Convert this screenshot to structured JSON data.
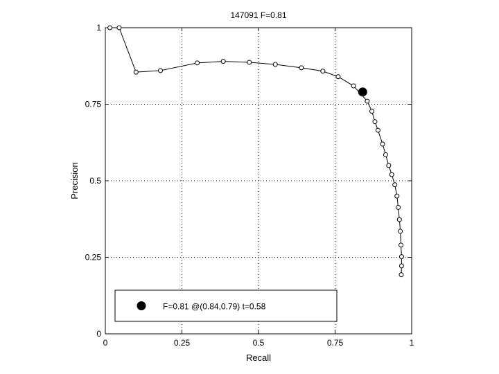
{
  "chart_data": {
    "type": "line",
    "title": "147091 F=0.81",
    "xlabel": "Recall",
    "ylabel": "Precision",
    "xlim": [
      0,
      1
    ],
    "ylim": [
      0,
      1
    ],
    "x_ticks": [
      0,
      0.25,
      0.5,
      0.75,
      1
    ],
    "y_ticks": [
      0,
      0.25,
      0.5,
      0.75,
      1
    ],
    "x_tick_labels": [
      "0",
      "0.25",
      "0.5",
      "0.75",
      "1"
    ],
    "y_tick_labels": [
      "0",
      "0.25",
      "0.5",
      "0.75",
      "1"
    ],
    "grid": true,
    "grid_style": "dotted",
    "legend_position": "bottom-left",
    "series": [
      {
        "color": "#000000",
        "marker": "open-circle",
        "points": [
          [
            0.015,
            1.0
          ],
          [
            0.045,
            1.0
          ],
          [
            0.1,
            0.855
          ],
          [
            0.18,
            0.86
          ],
          [
            0.3,
            0.885
          ],
          [
            0.385,
            0.89
          ],
          [
            0.47,
            0.887
          ],
          [
            0.555,
            0.88
          ],
          [
            0.64,
            0.869
          ],
          [
            0.71,
            0.858
          ],
          [
            0.76,
            0.84
          ],
          [
            0.81,
            0.81
          ],
          [
            0.855,
            0.76
          ],
          [
            0.87,
            0.727
          ],
          [
            0.88,
            0.693
          ],
          [
            0.89,
            0.665
          ],
          [
            0.905,
            0.62
          ],
          [
            0.915,
            0.585
          ],
          [
            0.925,
            0.55
          ],
          [
            0.935,
            0.52
          ],
          [
            0.945,
            0.487
          ],
          [
            0.952,
            0.45
          ],
          [
            0.956,
            0.413
          ],
          [
            0.96,
            0.373
          ],
          [
            0.963,
            0.335
          ],
          [
            0.965,
            0.29
          ],
          [
            0.967,
            0.252
          ],
          [
            0.967,
            0.222
          ],
          [
            0.966,
            0.193
          ]
        ]
      }
    ],
    "highlight_point": {
      "recall": 0.84,
      "precision": 0.79,
      "color": "#000000",
      "marker": "filled-circle"
    },
    "legend": {
      "label": "F=0.81 @(0.84,0.79) t=0.58"
    }
  }
}
